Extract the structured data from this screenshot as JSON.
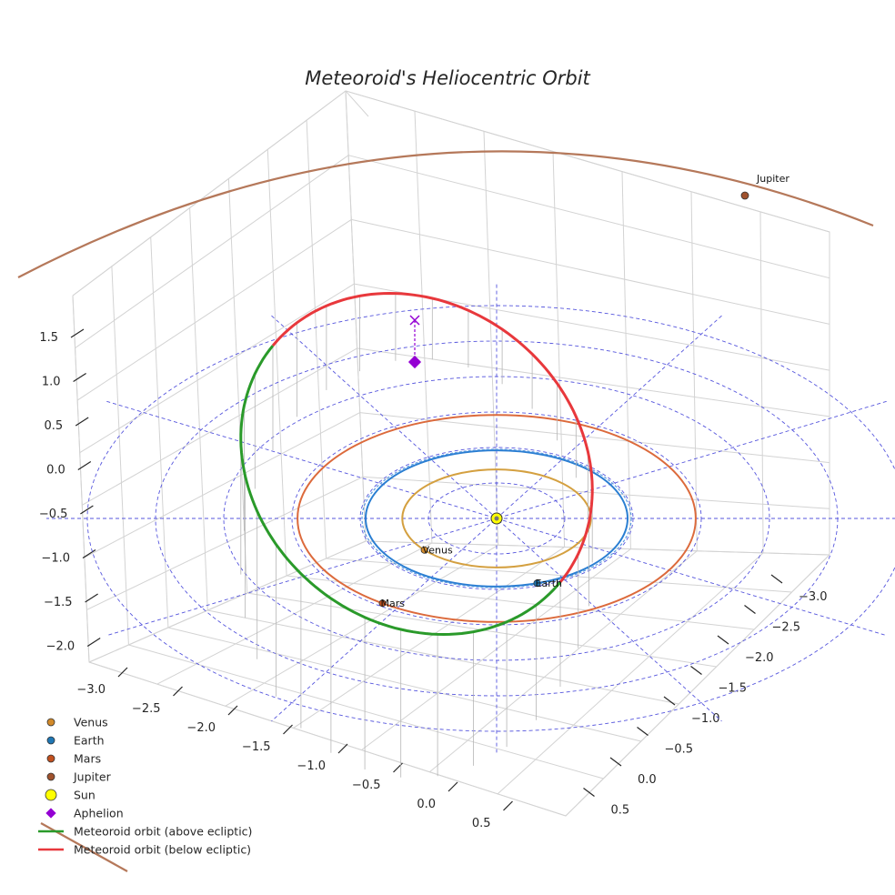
{
  "chart_data": {
    "type": "line",
    "projection": "3d",
    "title": "Meteoroid's Heliocentric Orbit",
    "xlabel": "",
    "ylabel": "",
    "zlabel": "",
    "xlim": [
      -3.2,
      0.7
    ],
    "ylim": [
      -3.2,
      0.7
    ],
    "zlim": [
      -2.2,
      1.7
    ],
    "x_ticks": [
      "−3.0",
      "−2.5",
      "−2.0",
      "−1.5",
      "−1.0",
      "−0.5",
      "0.0",
      "0.5"
    ],
    "y_ticks": [
      "−3.0",
      "−2.5",
      "−2.0",
      "−1.5",
      "−1.0",
      "−0.5",
      "0.0",
      "0.5"
    ],
    "z_ticks": [
      "1.5",
      "1.0",
      "0.5",
      "0.0",
      "−0.5",
      "−1.0",
      "−1.5",
      "−2.0"
    ],
    "reference_circles_au": [
      0.5,
      1.0,
      1.5,
      2.0,
      2.5,
      3.0
    ],
    "planets": [
      {
        "name": "Venus",
        "a": 0.72,
        "angle_deg": 220,
        "color": "#d28a2a",
        "orbit_color": "#d4a040"
      },
      {
        "name": "Earth",
        "a": 1.0,
        "angle_deg": 288,
        "color": "#1f77b4",
        "orbit_color": "#2a7ed2"
      },
      {
        "name": "Mars",
        "a": 1.52,
        "angle_deg": 235,
        "color": "#c2501e",
        "orbit_color": "#dc6a3c"
      },
      {
        "name": "Jupiter",
        "a": 5.2,
        "angle_deg": 50,
        "color": "#a0522d",
        "orbit_color": "#b5785a"
      }
    ],
    "sun": {
      "name": "Sun",
      "x": 0,
      "y": 0,
      "z": 0,
      "color": "#ffff00"
    },
    "meteoroid_orbit": {
      "perihelion_au": 0.97,
      "aphelion_au": 2.6,
      "perihelion_angle_deg": 292,
      "inclination_deg": 32,
      "above_color": "#2a9a2a",
      "below_color": "#e8383c"
    },
    "aphelion": {
      "name": "Aphelion",
      "color": "#9400d3"
    },
    "legend": [
      {
        "label": "Venus",
        "kind": "dot",
        "color": "#d28a2a"
      },
      {
        "label": "Earth",
        "kind": "dot",
        "color": "#1f77b4"
      },
      {
        "label": "Mars",
        "kind": "dot",
        "color": "#c2501e"
      },
      {
        "label": "Jupiter",
        "kind": "dot",
        "color": "#a0522d"
      },
      {
        "label": "Sun",
        "kind": "bigdot",
        "color": "#ffff00"
      },
      {
        "label": "Aphelion",
        "kind": "diamond",
        "color": "#9400d3"
      },
      {
        "label": "Meteoroid orbit (above ecliptic)",
        "kind": "line",
        "color": "#2a9a2a"
      },
      {
        "label": "Meteoroid orbit (below ecliptic)",
        "kind": "line",
        "color": "#e8383c"
      }
    ],
    "legend_position": "lower-left"
  }
}
